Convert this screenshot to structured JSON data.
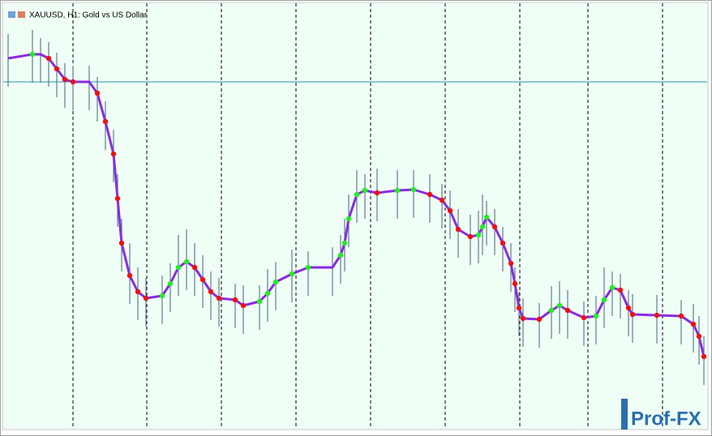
{
  "chart_data": {
    "type": "line",
    "title": "XAUUSD, H1:  Gold vs US Dollar",
    "logo": "Prof-FX",
    "xlim": [
      0,
      868
    ],
    "ylim": [
      0,
      518
    ],
    "xticks": [
      90,
      181,
      273,
      365,
      457,
      549,
      641,
      725,
      817
    ],
    "hline": 427,
    "hline_color": "#1f8fb5",
    "x": [
      10,
      40,
      50,
      60,
      70,
      80,
      90,
      110,
      120,
      130,
      140,
      145,
      150,
      160,
      170,
      180,
      200,
      210,
      220,
      230,
      240,
      250,
      260,
      270,
      290,
      300,
      320,
      330,
      340,
      360,
      380,
      410,
      420,
      425,
      430,
      440,
      450,
      465,
      490,
      510,
      530,
      545,
      555,
      565,
      580,
      590,
      595,
      600,
      610,
      620,
      630,
      635,
      640,
      645,
      665,
      680,
      690,
      700,
      720,
      735,
      745,
      755,
      765,
      775,
      780,
      810,
      840,
      855,
      862,
      868
    ],
    "bars": {
      "color": "#5b7f8f",
      "high": [
        486,
        491,
        481,
        476,
        463,
        450,
        447,
        447,
        433,
        403,
        368,
        313,
        258,
        228,
        198,
        185,
        188,
        203,
        238,
        245,
        228,
        213,
        193,
        185,
        178,
        176,
        176,
        196,
        205,
        220,
        218,
        223,
        238,
        258,
        288,
        318,
        313,
        320,
        318,
        318,
        313,
        301,
        293,
        270,
        263,
        268,
        288,
        280,
        270,
        248,
        228,
        198,
        168,
        160,
        154,
        175,
        181,
        170,
        156,
        163,
        198,
        193,
        190,
        170,
        165,
        164,
        158,
        153,
        138,
        113
      ],
      "low": [
        421,
        426,
        426,
        421,
        408,
        395,
        392,
        392,
        378,
        343,
        303,
        248,
        193,
        153,
        133,
        125,
        128,
        143,
        163,
        170,
        163,
        148,
        133,
        125,
        123,
        116,
        121,
        131,
        145,
        155,
        163,
        163,
        178,
        193,
        223,
        253,
        258,
        255,
        258,
        259,
        253,
        246,
        233,
        210,
        201,
        203,
        213,
        225,
        213,
        193,
        168,
        143,
        113,
        100,
        99,
        110,
        116,
        110,
        101,
        103,
        123,
        138,
        135,
        113,
        105,
        104,
        103,
        93,
        78,
        53
      ]
    },
    "series": [
      {
        "color": "#8a2be2",
        "up_color": "#22ee22",
        "down_color": "#ee1111",
        "values": [
          456,
          461,
          461,
          456,
          443,
          430,
          427,
          427,
          413,
          378,
          338,
          283,
          228,
          188,
          168,
          160,
          163,
          178,
          198,
          205,
          198,
          183,
          168,
          160,
          158,
          151,
          156,
          166,
          180,
          190,
          198,
          198,
          213,
          228,
          258,
          288,
          293,
          290,
          293,
          294,
          288,
          281,
          268,
          245,
          236,
          238,
          248,
          260,
          248,
          228,
          203,
          178,
          148,
          135,
          134,
          145,
          151,
          145,
          136,
          138,
          158,
          173,
          170,
          148,
          140,
          139,
          138,
          128,
          113,
          88
        ]
      }
    ]
  }
}
